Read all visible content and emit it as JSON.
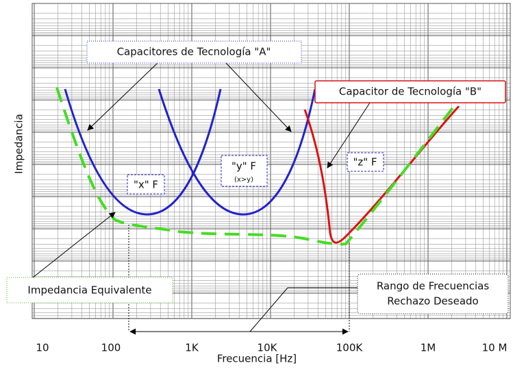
{
  "axes": {
    "y_label": "Impedancia",
    "x_label": "Frecuencia [Hz]",
    "x_ticks": [
      "10",
      "100",
      "1K",
      "10K",
      "100K",
      "1M",
      "10 M"
    ]
  },
  "labels": {
    "tech_a": "Capacitores de Tecnología  \"A\"",
    "tech_b": "Capacitor de Tecnología  \"B\"",
    "x": "\"x\" F",
    "y": "\"y\" F",
    "y_note": "(x>y)",
    "z": "\"z\" F",
    "equivalent": "Impedancia Equivalente",
    "range_1": "Rango de Frecuencias",
    "range_2": "Rechazo Deseado"
  }
}
